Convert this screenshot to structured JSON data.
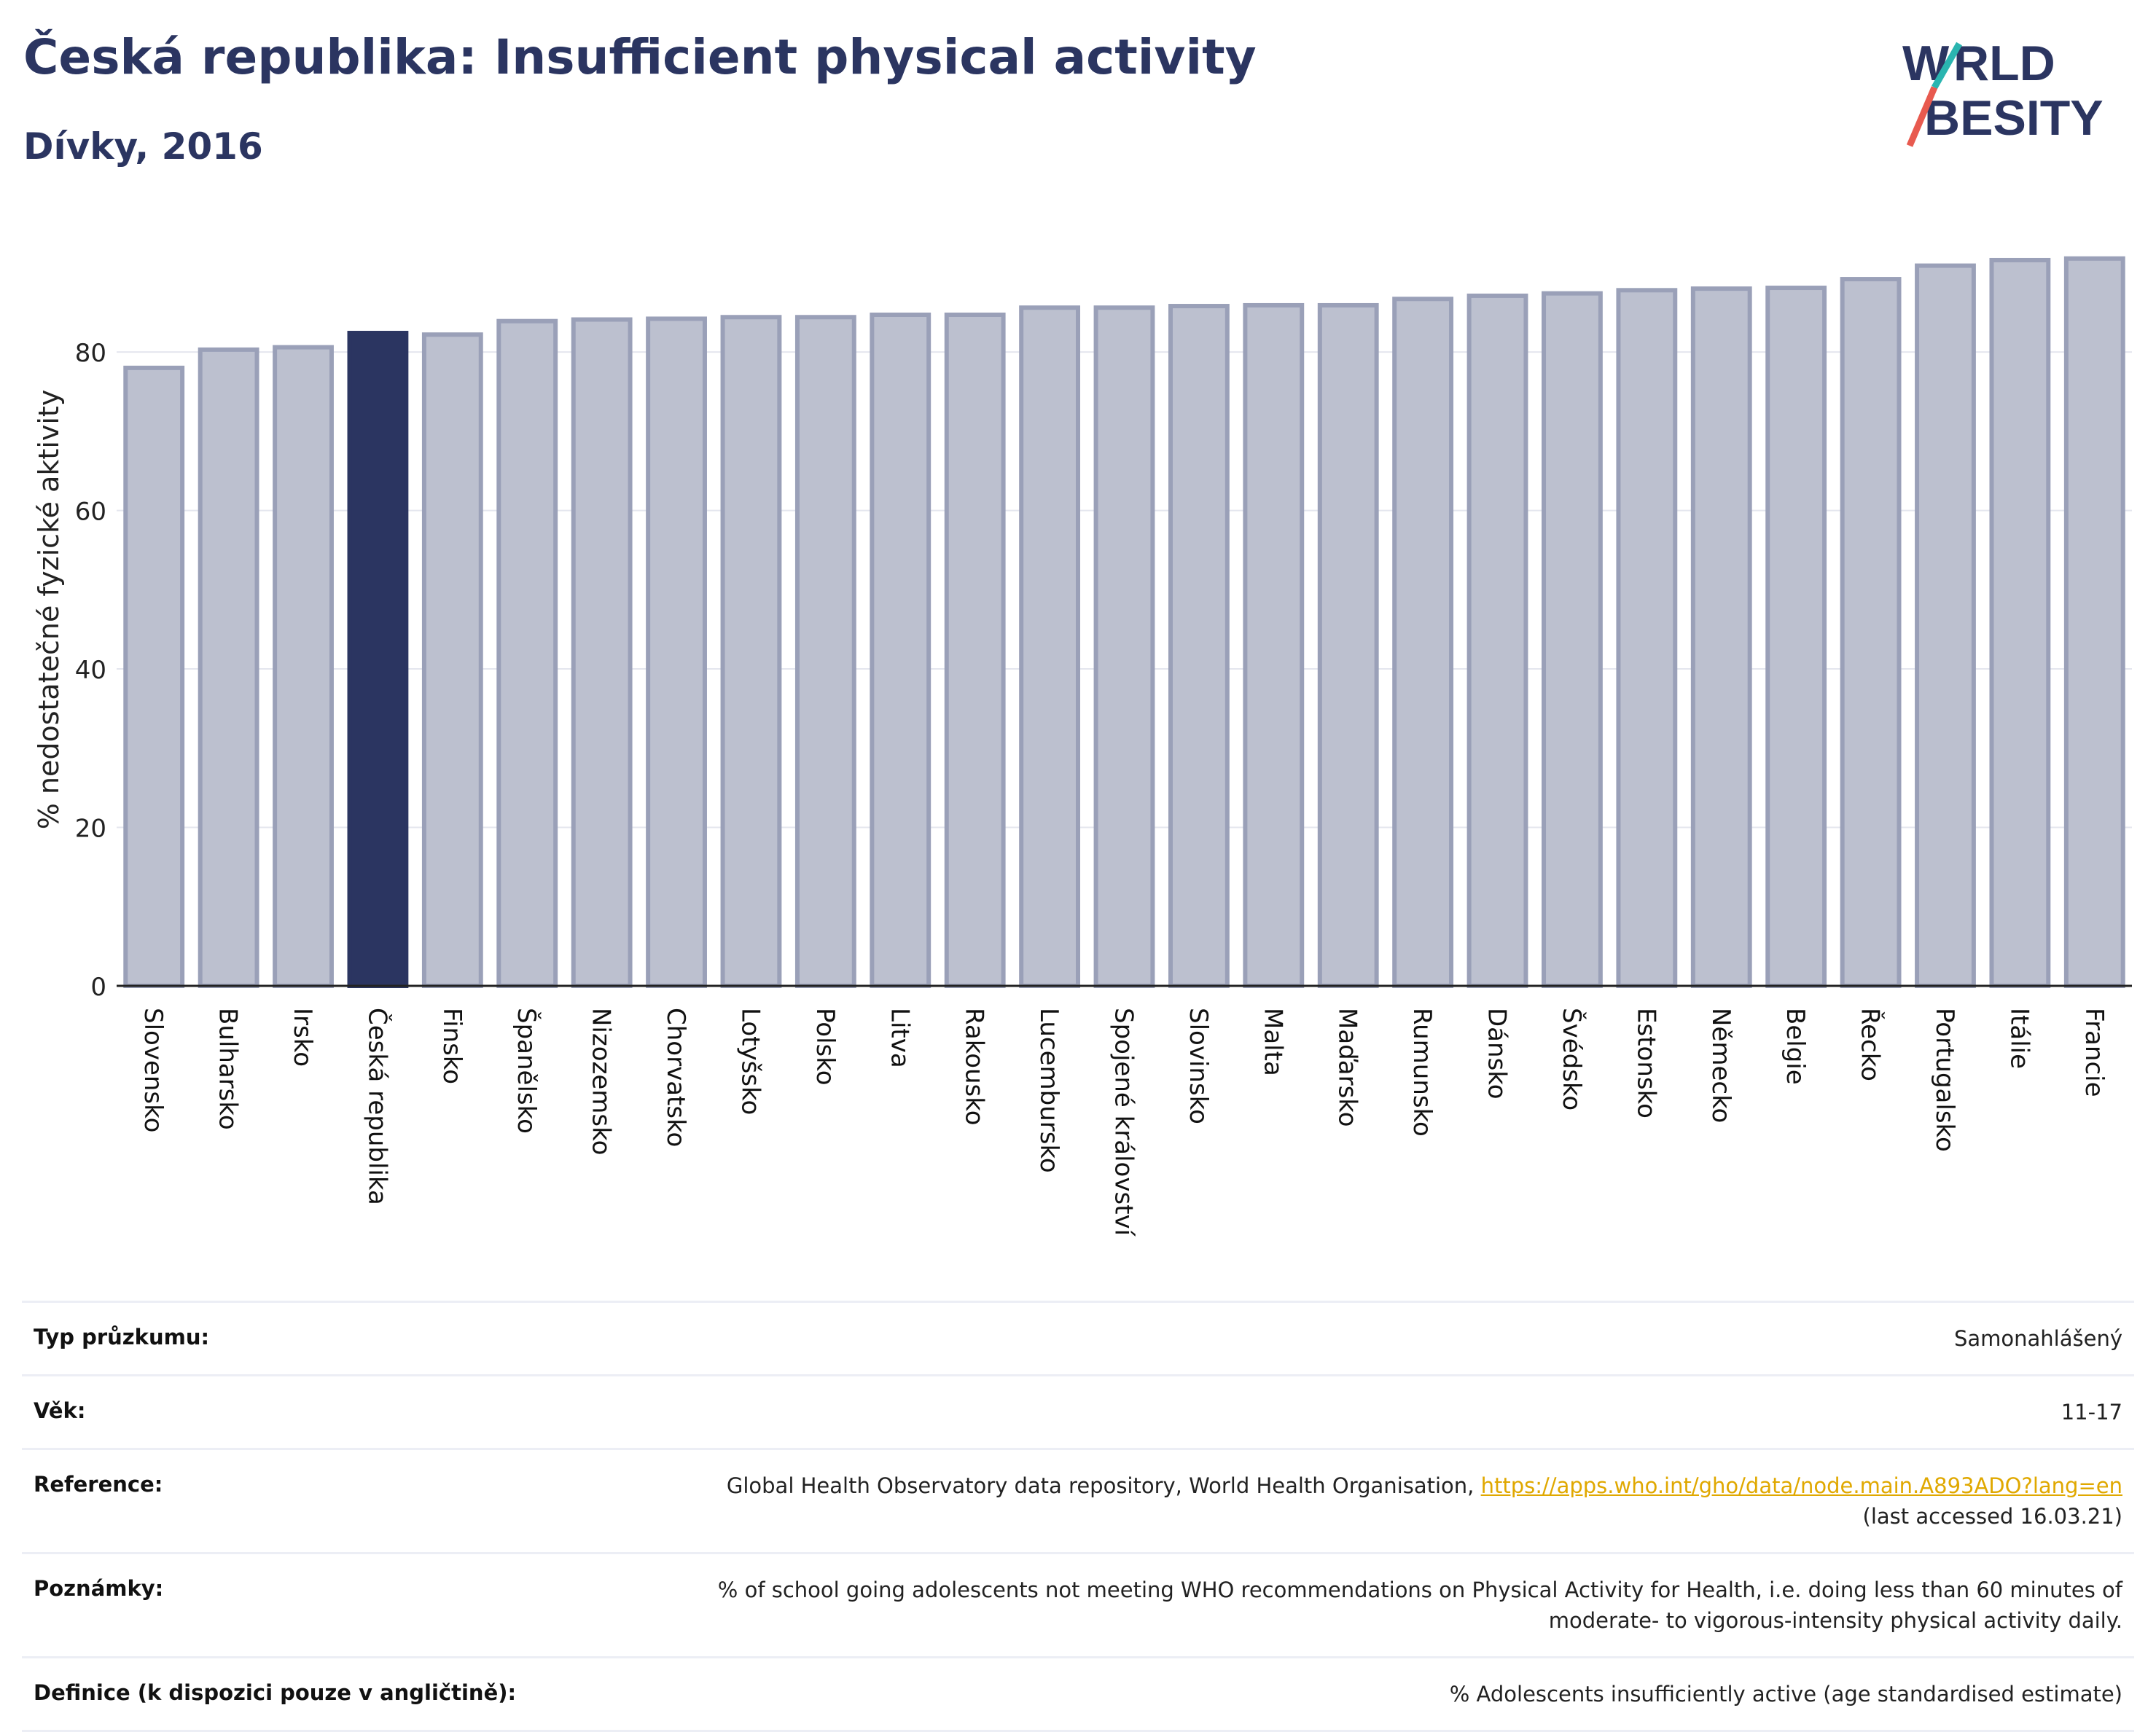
{
  "header": {
    "title": "Česká republika: Insufficient physical activity",
    "subtitle": "Dívky, 2016",
    "logo_text": "WORLD OBESITY"
  },
  "colors": {
    "text": "#2b3561",
    "bar": "#bcc0cf",
    "bar_edge": "#9aa0b8",
    "highlight": "#2b3561",
    "logo_teal": "#2ab5b0",
    "logo_red": "#e85a4f",
    "link": "#e0a800"
  },
  "chart_data": {
    "type": "bar",
    "ylabel": "% nedostatečné fyzické aktivity",
    "ylim": [
      0,
      95
    ],
    "yticks": [
      0,
      20,
      40,
      60,
      80
    ],
    "grid": true,
    "highlight": "Česká republika",
    "categories": [
      "Slovensko",
      "Bulharsko",
      "Irsko",
      "Česká republika",
      "Finsko",
      "Španělsko",
      "Nizozemsko",
      "Chorvatsko",
      "Lotyšsko",
      "Polsko",
      "Litva",
      "Rakousko",
      "Lucembursko",
      "Spojené království",
      "Slovinsko",
      "Malta",
      "Maďarsko",
      "Rumunsko",
      "Dánsko",
      "Švédsko",
      "Estonsko",
      "Německo",
      "Belgie",
      "Řecko",
      "Portugalsko",
      "Itálie",
      "Francie"
    ],
    "values": [
      78.0,
      80.3,
      80.6,
      82.4,
      82.2,
      83.9,
      84.1,
      84.2,
      84.4,
      84.4,
      84.7,
      84.7,
      85.6,
      85.6,
      85.8,
      85.9,
      85.9,
      86.7,
      87.1,
      87.4,
      87.8,
      88.0,
      88.1,
      89.2,
      90.9,
      91.6,
      91.8
    ]
  },
  "details": {
    "rows": [
      {
        "label": "Typ průzkumu:",
        "value": "Samonahlášený"
      },
      {
        "label": "Věk:",
        "value": "11-17"
      },
      {
        "label": "Reference:",
        "value": "Global Health Observatory data repository, World Health Organisation,",
        "link": "https://apps.who.int/gho/data/node.main.A893ADO?lang=en",
        "value2": "(last accessed 16.03.21)"
      },
      {
        "label": "Poznámky:",
        "value": "% of school going adolescents not meeting WHO recommendations on Physical Activity for Health, i.e. doing less than 60 minutes of",
        "value2": "moderate- to vigorous-intensity physical activity daily."
      },
      {
        "label": "Definice (k dispozici pouze v angličtině):",
        "value": "% Adolescents insufficiently active (age standardised estimate)"
      }
    ]
  }
}
